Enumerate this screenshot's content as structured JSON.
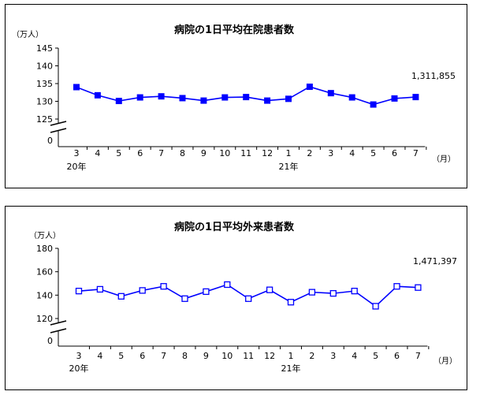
{
  "chart_data": [
    {
      "type": "line",
      "title": "病院の1日平均在院患者数",
      "ylabel": "（万人）",
      "xunit": "（月）",
      "x": [
        "3",
        "4",
        "5",
        "6",
        "7",
        "8",
        "9",
        "10",
        "11",
        "12",
        "1",
        "2",
        "3",
        "4",
        "5",
        "6",
        "7"
      ],
      "year_labels": [
        {
          "label": "20年",
          "index": 0
        },
        {
          "label": "21年",
          "index": 10
        }
      ],
      "yticks": [
        125,
        130,
        135,
        140,
        145
      ],
      "ylim": [
        125,
        145
      ],
      "zero_label": "0",
      "marker": "filled-square",
      "color": "#0000ff",
      "series": [
        {
          "values": [
            134.0,
            131.7,
            130.1,
            131.1,
            131.4,
            130.9,
            130.2,
            131.1,
            131.2,
            130.2,
            130.7,
            134.1,
            132.3,
            131.1,
            129.1,
            130.8,
            131.2
          ]
        }
      ],
      "annotation": "1,311,855"
    },
    {
      "type": "line",
      "title": "病院の1日平均外来患者数",
      "ylabel": "（万人）",
      "xunit": "（月）",
      "x": [
        "3",
        "4",
        "5",
        "6",
        "7",
        "8",
        "9",
        "10",
        "11",
        "12",
        "1",
        "2",
        "3",
        "4",
        "5",
        "6",
        "7"
      ],
      "year_labels": [
        {
          "label": "20年",
          "index": 0
        },
        {
          "label": "21年",
          "index": 10
        }
      ],
      "yticks": [
        120,
        140,
        160,
        180
      ],
      "ylim": [
        120,
        180
      ],
      "zero_label": "0",
      "marker": "hollow-square",
      "color": "#0000ff",
      "series": [
        {
          "values": [
            143.5,
            145.0,
            139.0,
            144.0,
            147.5,
            137.0,
            143.0,
            149.0,
            137.0,
            144.5,
            134.0,
            142.5,
            141.5,
            143.5,
            130.5,
            147.5,
            146.5
          ]
        }
      ],
      "annotation": "1,471,397"
    }
  ]
}
